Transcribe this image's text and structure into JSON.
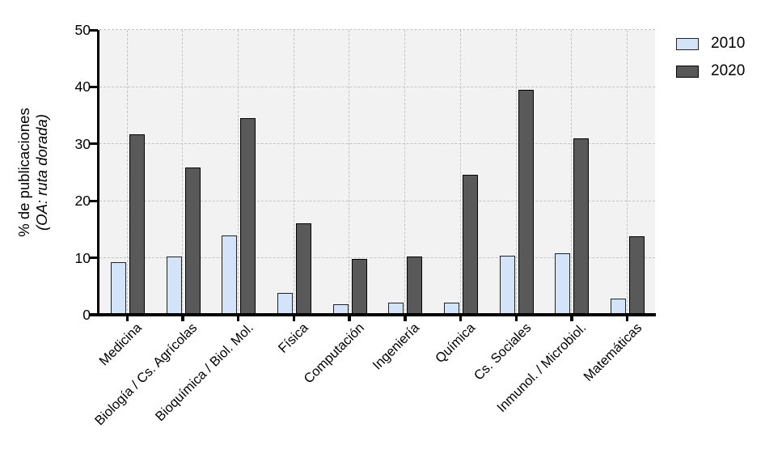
{
  "chart_data": {
    "type": "bar",
    "title": "",
    "ylabel_line1": "% de publicaciones",
    "ylabel_line2": "(OA: ruta dorada)",
    "xlabel": "",
    "ylim": [
      0,
      50
    ],
    "yticks": [
      0,
      10,
      20,
      30,
      40,
      50
    ],
    "grid": "dashed, horizontal and vertical",
    "legend_position": "top-right",
    "plot_bg_color": "#f2f2f2",
    "gridline_color": "#c3c3c3",
    "categories": [
      "Medicina",
      "Biología / Cs. Agrícolas",
      "Bioquímica / Biol. Mol.",
      "Física",
      "Computación",
      "Ingeniería",
      "Química",
      "Cs. Sociales",
      "Inmunol. / Microbiol.",
      "Matemáticas"
    ],
    "series": [
      {
        "name": "2010",
        "fill_color": "#d3e3f8",
        "border_color": "#222222",
        "values": [
          9.2,
          10.2,
          13.9,
          3.8,
          1.9,
          2.1,
          2.1,
          10.4,
          10.8,
          2.8
        ]
      },
      {
        "name": "2020",
        "fill_color": "#595959",
        "border_color": "#000000",
        "values": [
          31.7,
          25.9,
          34.5,
          16.0,
          9.8,
          10.2,
          24.6,
          39.5,
          30.9,
          13.8
        ]
      }
    ]
  }
}
